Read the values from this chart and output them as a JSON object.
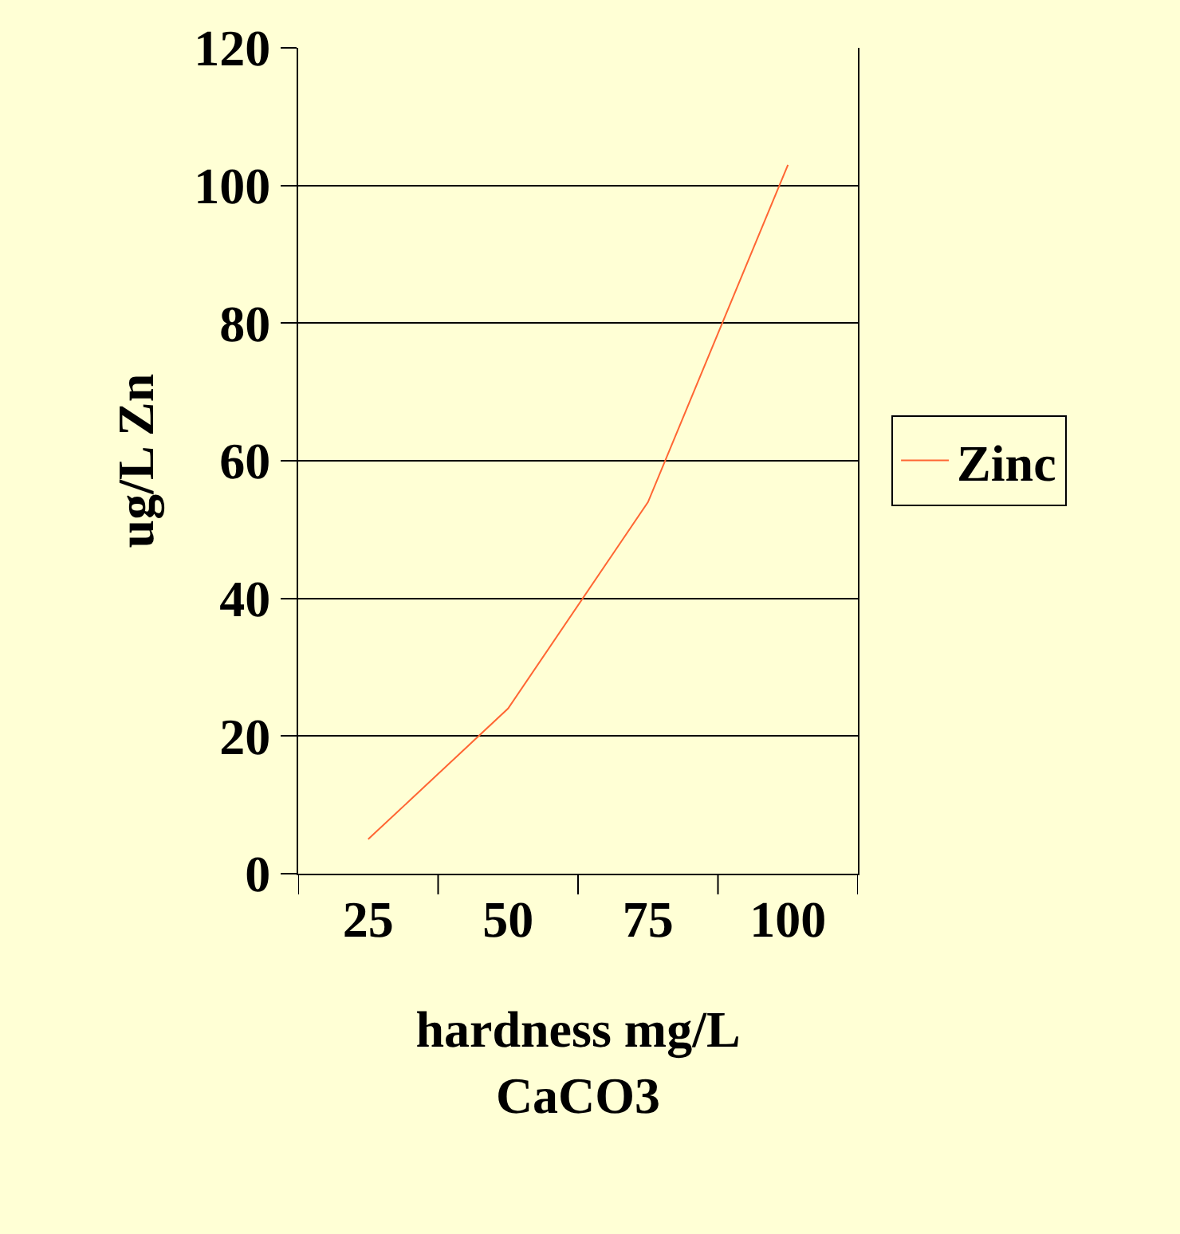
{
  "chart_data": {
    "type": "line",
    "categories": [
      "25",
      "50",
      "75",
      "100"
    ],
    "series": [
      {
        "name": "Zinc",
        "color": "#ff6633",
        "values": [
          5,
          24,
          54,
          103
        ]
      }
    ],
    "xlabel": "hardness mg/L CaCO3",
    "ylabel": "ug/L Zn",
    "ylim": [
      0,
      120
    ],
    "yticks": [
      0,
      20,
      40,
      60,
      80,
      100,
      120
    ],
    "grid": "y",
    "legend": "right",
    "marker": "none",
    "line_style": "solid"
  }
}
